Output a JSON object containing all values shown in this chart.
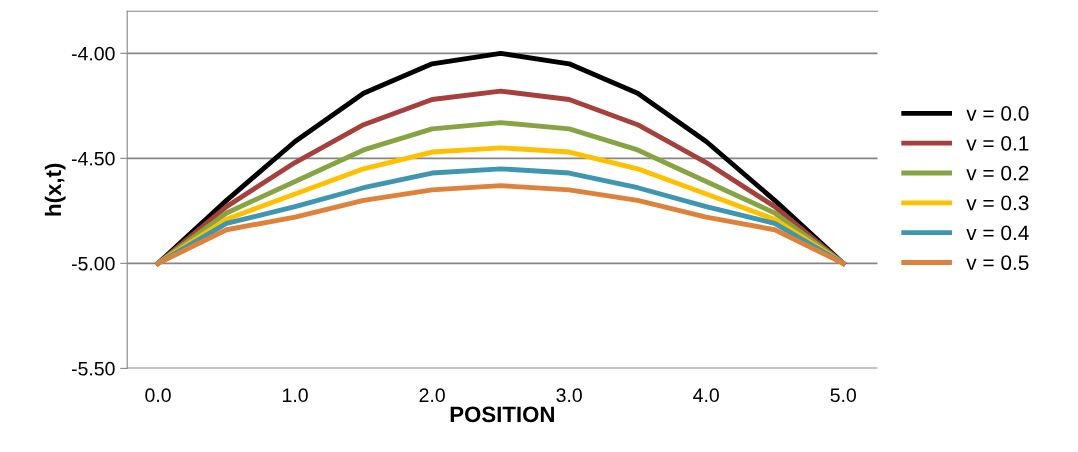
{
  "chart_data": {
    "type": "line",
    "xlabel": "POSITION",
    "ylabel": "h(x,t)",
    "x": [
      0,
      0.5,
      1,
      1.5,
      2,
      2.5,
      3,
      3.5,
      4,
      4.5,
      5
    ],
    "xlim": [
      -0.225,
      5.25
    ],
    "xticks": [
      {
        "value": 0,
        "label": "0.0"
      },
      {
        "value": 1,
        "label": "1.0"
      },
      {
        "value": 2,
        "label": "2.0"
      },
      {
        "value": 3,
        "label": "3.0"
      },
      {
        "value": 4,
        "label": "4.0"
      },
      {
        "value": 5,
        "label": "5.0"
      }
    ],
    "ylim": [
      -5.5,
      -3.8
    ],
    "yticks": [
      {
        "value": -5.5,
        "label": "-5.50"
      },
      {
        "value": -5,
        "label": "-5.00"
      },
      {
        "value": -4.5,
        "label": "-4.50"
      },
      {
        "value": -4,
        "label": "-4.00"
      }
    ],
    "grid": "y",
    "legend": "right",
    "marker": "none",
    "line_style": "solid",
    "series": [
      {
        "name": "v = 0.0",
        "color": "#000000",
        "values": [
          -5,
          -4.7,
          -4.42,
          -4.19,
          -4.05,
          -4.0,
          -4.05,
          -4.19,
          -4.42,
          -4.7,
          -5
        ]
      },
      {
        "name": "v = 0.1",
        "color": "#a5403d",
        "values": [
          -5,
          -4.73,
          -4.52,
          -4.34,
          -4.22,
          -4.18,
          -4.22,
          -4.34,
          -4.52,
          -4.73,
          -5
        ]
      },
      {
        "name": "v = 0.2",
        "color": "#86a542",
        "values": [
          -5,
          -4.76,
          -4.61,
          -4.46,
          -4.36,
          -4.33,
          -4.36,
          -4.46,
          -4.61,
          -4.76,
          -5
        ]
      },
      {
        "name": "v = 0.3",
        "color": "#ffc000",
        "values": [
          -5,
          -4.79,
          -4.67,
          -4.55,
          -4.47,
          -4.45,
          -4.47,
          -4.55,
          -4.67,
          -4.79,
          -5
        ]
      },
      {
        "name": "v = 0.4",
        "color": "#3e96b0",
        "values": [
          -5,
          -4.81,
          -4.73,
          -4.64,
          -4.57,
          -4.55,
          -4.57,
          -4.64,
          -4.73,
          -4.81,
          -5
        ]
      },
      {
        "name": "v = 0.5",
        "color": "#de823b",
        "values": [
          -5,
          -4.84,
          -4.78,
          -4.7,
          -4.65,
          -4.63,
          -4.65,
          -4.7,
          -4.78,
          -4.84,
          -5
        ]
      }
    ]
  }
}
